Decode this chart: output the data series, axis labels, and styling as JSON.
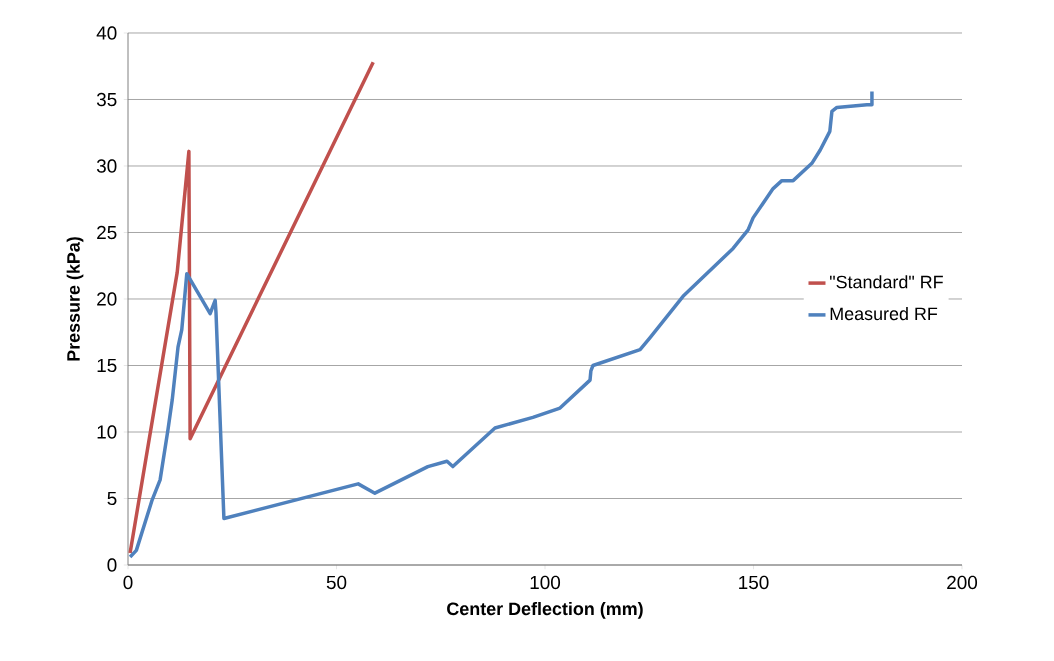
{
  "chart_data": {
    "type": "line",
    "xlabel": "Center Deflection (mm)",
    "ylabel": "Pressure (kPa)",
    "xlim": [
      0,
      200
    ],
    "ylim": [
      0,
      40
    ],
    "xticks": [
      0,
      50,
      100,
      150,
      200
    ],
    "yticks": [
      0,
      5,
      10,
      15,
      20,
      25,
      30,
      35,
      40
    ],
    "grid": "y",
    "legend": "right",
    "marker": "none",
    "line_style": "solid",
    "series": [
      {
        "name": "\"Standard\" RF",
        "color": "#c0504d",
        "x": [
          0.5,
          11.8,
          14.6,
          14.9,
          58.8
        ],
        "values": [
          0.9,
          22,
          31.1,
          9.5,
          37.8
        ]
      },
      {
        "name": "Measured RF",
        "color": "#4f81bd",
        "x": [
          0.5,
          2,
          5.8,
          7.7,
          9.6,
          10.6,
          12,
          12.9,
          14.1,
          19.7,
          20.9,
          21.1,
          23.0,
          55.2,
          59.2,
          71.9,
          76.5,
          77.9,
          79.6,
          88,
          97.1,
          103.6,
          110.8,
          111,
          111.5,
          122.8,
          125.2,
          133.1,
          145.1,
          148.7,
          149.9,
          154.7,
          156.8,
          159.5,
          164,
          166,
          168.3,
          168.8,
          170,
          177.2,
          178.4,
          178.4
        ],
        "values": [
          0.6,
          1.1,
          4.9,
          6.4,
          10.2,
          12.4,
          16.4,
          17.7,
          21.9,
          18.9,
          19.9,
          19,
          3.5,
          6.1,
          5.4,
          7.4,
          7.8,
          7.4,
          7.9,
          10.3,
          11.1,
          11.8,
          13.9,
          14.6,
          15,
          16.2,
          17.1,
          20.2,
          23.8,
          25.2,
          26.1,
          28.3,
          28.9,
          28.9,
          30.2,
          31.2,
          32.6,
          34.1,
          34.4,
          34.6,
          34.6,
          35.6
        ]
      }
    ]
  }
}
